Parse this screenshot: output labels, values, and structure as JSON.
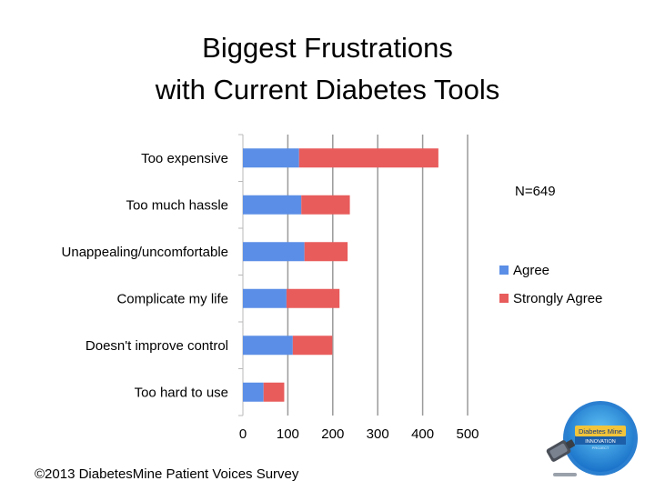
{
  "title_lines": [
    "Biggest Frustrations",
    "with Current Diabetes Tools"
  ],
  "note": "N=649",
  "footer": "©2013 DiabetesMine Patient Voices Survey",
  "logo": {
    "line1": "Diabetes Mine",
    "line2": "INNOVATION",
    "line3": "PROJECT"
  },
  "chart_data": {
    "type": "bar",
    "orientation": "horizontal",
    "stacked": true,
    "categories": [
      "Too expensive",
      "Too much hassle",
      "Unappealing/uncomfortable",
      "Complicate my life",
      "Doesn't improve control",
      "Too hard to use"
    ],
    "series": [
      {
        "name": "Agree",
        "color": "#5b8ee6",
        "values": [
          125,
          130,
          137,
          97,
          111,
          46
        ]
      },
      {
        "name": "Strongly Agree",
        "color": "#e85c5c",
        "values": [
          310,
          108,
          96,
          118,
          88,
          46
        ]
      }
    ],
    "x_ticks": [
      0,
      100,
      200,
      300,
      400,
      500
    ],
    "xlim": [
      0,
      500
    ],
    "grid": true,
    "legend_position": "right"
  }
}
